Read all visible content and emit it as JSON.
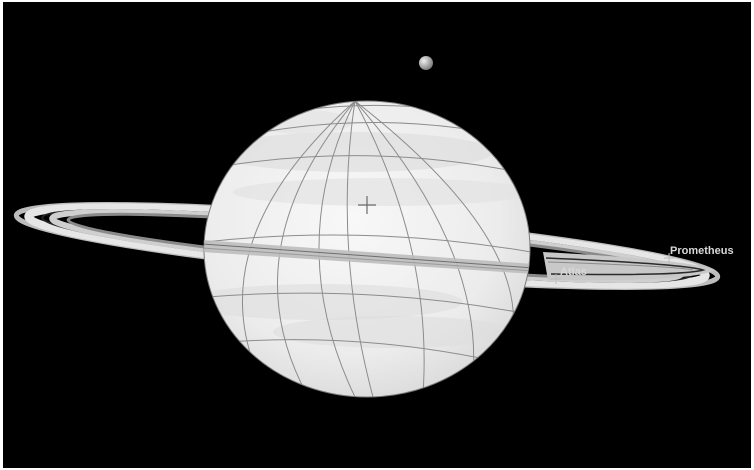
{
  "view": {
    "background_color": "#000000",
    "planet_color": "#ededed",
    "grid_color": "#8c8c8c",
    "ring_color": "#d0d0d0",
    "label_color": "#d8d8d8"
  },
  "labels": {
    "prometheus": "Prometheus",
    "atlas": "Atlas"
  },
  "icons": {
    "center_marker": "crosshair-icon",
    "moon_marker": "plus-marker-icon"
  }
}
